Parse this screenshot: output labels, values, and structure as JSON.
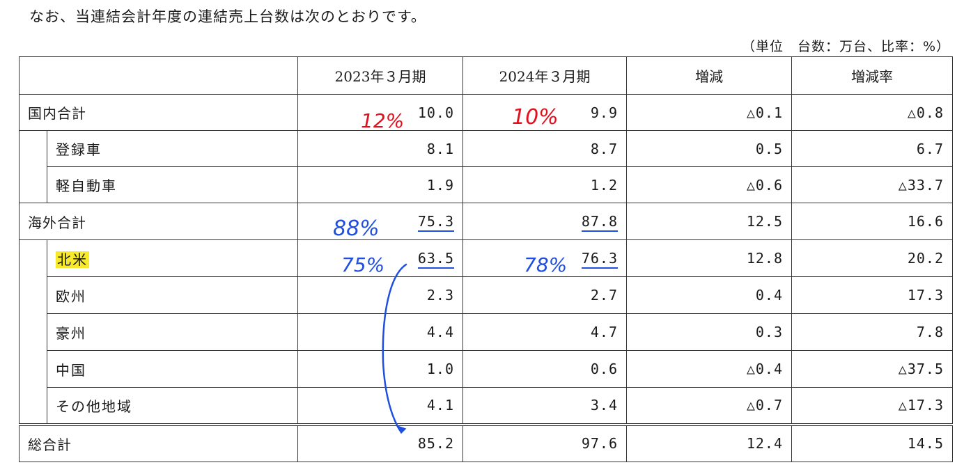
{
  "intro_text": "なお、当連結会計年度の連結売上台数は次のとおりです。",
  "unit_note": "（単位　台数：万台、比率：%）",
  "headers": {
    "col1": "2023年３月期",
    "col2": "2024年３月期",
    "col3": "増減",
    "col4": "増減率"
  },
  "rows": {
    "domestic": {
      "label": "国内合計",
      "v2023": "10.0",
      "v2024": "9.9",
      "change": "△0.1",
      "rate": "△0.8"
    },
    "registered": {
      "label": "登録車",
      "v2023": "8.1",
      "v2024": "8.7",
      "change": "0.5",
      "rate": "6.7"
    },
    "kei": {
      "label": "軽自動車",
      "v2023": "1.9",
      "v2024": "1.2",
      "change": "△0.6",
      "rate": "△33.7"
    },
    "overseas": {
      "label": "海外合計",
      "v2023": "75.3",
      "v2024": "87.8",
      "change": "12.5",
      "rate": "16.6"
    },
    "north_america": {
      "label": "北米",
      "v2023": "63.5",
      "v2024": "76.3",
      "change": "12.8",
      "rate": "20.2"
    },
    "europe": {
      "label": "欧州",
      "v2023": "2.3",
      "v2024": "2.7",
      "change": "0.4",
      "rate": "17.3"
    },
    "australia": {
      "label": "豪州",
      "v2023": "4.4",
      "v2024": "4.7",
      "change": "0.3",
      "rate": "7.8"
    },
    "china": {
      "label": "中国",
      "v2023": "1.0",
      "v2024": "0.6",
      "change": "△0.4",
      "rate": "△37.5"
    },
    "other": {
      "label": "その他地域",
      "v2023": "4.1",
      "v2024": "3.4",
      "change": "△0.7",
      "rate": "△17.3"
    },
    "total": {
      "label": "総合計",
      "v2023": "85.2",
      "v2024": "97.6",
      "change": "12.4",
      "rate": "14.5"
    }
  },
  "annotations": {
    "domestic_2023_share": "12%",
    "domestic_2024_share": "10%",
    "overseas_2023_share": "88%",
    "na_2023_share": "75%",
    "na_2024_share": "78%",
    "red_ink": "#e0101e",
    "blue_ink": "#1f4fe0"
  },
  "highlight_color": "#f7ea2a"
}
